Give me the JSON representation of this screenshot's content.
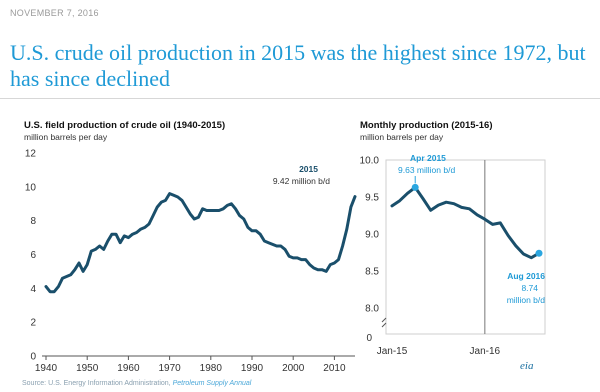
{
  "date": "NOVEMBER 7, 2016",
  "headline": "U.S. crude oil production in 2015 was the highest since 1972, but has since declined",
  "source": {
    "prefix": "Source: U.S. Energy Information Administration,",
    "publication": "Petroleum Supply Annual"
  },
  "logo_text": "eia",
  "colors": {
    "accent": "#1f9ad6",
    "line": "#1a4f6b",
    "highlight": "#2aa6e0"
  },
  "chart_data": [
    {
      "type": "line",
      "title": "U.S. field production of crude oil (1940-2015)",
      "ylabel": "million barrels per day",
      "xlim": [
        1940,
        2015
      ],
      "ylim": [
        0,
        12
      ],
      "xticks": [
        1940,
        1950,
        1960,
        1970,
        1980,
        1990,
        2000,
        2010
      ],
      "yticks": [
        0,
        2,
        4,
        6,
        8,
        10,
        12
      ],
      "x": [
        1940,
        1941,
        1942,
        1943,
        1944,
        1945,
        1946,
        1947,
        1948,
        1949,
        1950,
        1951,
        1952,
        1953,
        1954,
        1955,
        1956,
        1957,
        1958,
        1959,
        1960,
        1961,
        1962,
        1963,
        1964,
        1965,
        1966,
        1967,
        1968,
        1969,
        1970,
        1971,
        1972,
        1973,
        1974,
        1975,
        1976,
        1977,
        1978,
        1979,
        1980,
        1981,
        1982,
        1983,
        1984,
        1985,
        1986,
        1987,
        1988,
        1989,
        1990,
        1991,
        1992,
        1993,
        1994,
        1995,
        1996,
        1997,
        1998,
        1999,
        2000,
        2001,
        2002,
        2003,
        2004,
        2005,
        2006,
        2007,
        2008,
        2009,
        2010,
        2011,
        2012,
        2013,
        2014,
        2015
      ],
      "y": [
        4.1,
        3.8,
        3.8,
        4.1,
        4.6,
        4.7,
        4.8,
        5.1,
        5.5,
        5.0,
        5.4,
        6.2,
        6.3,
        6.5,
        6.3,
        6.8,
        7.2,
        7.2,
        6.7,
        7.1,
        7.0,
        7.2,
        7.3,
        7.5,
        7.6,
        7.8,
        8.3,
        8.8,
        9.1,
        9.2,
        9.6,
        9.5,
        9.4,
        9.2,
        8.8,
        8.4,
        8.1,
        8.2,
        8.7,
        8.6,
        8.6,
        8.6,
        8.6,
        8.7,
        8.9,
        9.0,
        8.7,
        8.3,
        8.1,
        7.6,
        7.4,
        7.4,
        7.2,
        6.8,
        6.7,
        6.6,
        6.5,
        6.5,
        6.3,
        5.9,
        5.8,
        5.8,
        5.7,
        5.7,
        5.4,
        5.2,
        5.1,
        5.1,
        5.0,
        5.4,
        5.5,
        5.7,
        6.5,
        7.5,
        8.8,
        9.42
      ],
      "annotations": [
        {
          "label": "2015",
          "text": "9.42 million b/d"
        }
      ]
    },
    {
      "type": "line",
      "title": "Monthly production (2015-16)",
      "ylabel": "million barrels per day",
      "ylim": [
        8.0,
        10.0
      ],
      "yticks": [
        "8.0",
        "8.5",
        "9.0",
        "9.5",
        "10.0"
      ],
      "y_break_label": "0",
      "xtick_labels": [
        "Jan-15",
        "Jan-16"
      ],
      "x": [
        "Jan-15",
        "Feb-15",
        "Mar-15",
        "Apr-15",
        "May-15",
        "Jun-15",
        "Jul-15",
        "Aug-15",
        "Sep-15",
        "Oct-15",
        "Nov-15",
        "Dec-15",
        "Jan-16",
        "Feb-16",
        "Mar-16",
        "Apr-16",
        "May-16",
        "Jun-16",
        "Jul-16",
        "Aug-16"
      ],
      "y": [
        9.38,
        9.45,
        9.55,
        9.63,
        9.48,
        9.32,
        9.39,
        9.43,
        9.41,
        9.36,
        9.34,
        9.26,
        9.2,
        9.13,
        9.15,
        8.98,
        8.84,
        8.73,
        8.68,
        8.74
      ],
      "annotations": [
        {
          "label": "Apr 2015",
          "text": "9.63 million b/d"
        },
        {
          "label": "Aug 2016",
          "text_lines": [
            "8.74",
            "million b/d"
          ]
        }
      ]
    }
  ]
}
